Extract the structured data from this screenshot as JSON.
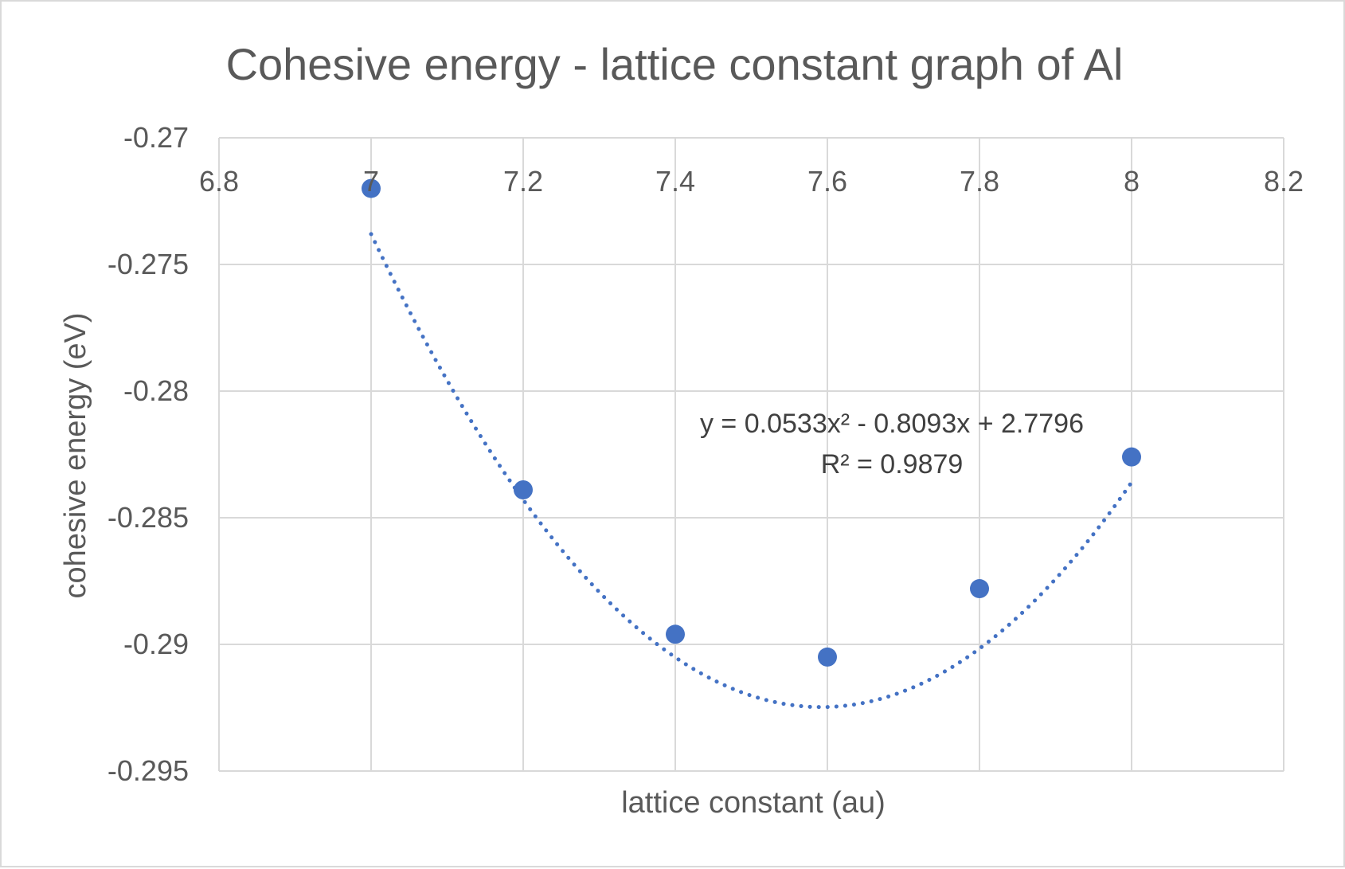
{
  "chart_data": {
    "type": "scatter",
    "title": "Cohesive energy - lattice constant graph of Al",
    "xlabel": "lattice constant (au)",
    "ylabel": "cohesive energy (eV)",
    "xlim": [
      6.8,
      8.2
    ],
    "ylim": [
      -0.295,
      -0.27
    ],
    "x_ticks": [
      6.8,
      7,
      7.2,
      7.4,
      7.6,
      7.8,
      8,
      8.2
    ],
    "x_tick_labels": [
      "6.8",
      "7",
      "7.2",
      "7.4",
      "7.6",
      "7.8",
      "8",
      "8.2"
    ],
    "y_ticks": [
      -0.27,
      -0.275,
      -0.28,
      -0.285,
      -0.29,
      -0.295
    ],
    "y_tick_labels": [
      "-0.27",
      "-0.275",
      "-0.28",
      "-0.285",
      "-0.29",
      "-0.295"
    ],
    "x_axis_position": "top",
    "grid": true,
    "legend": "none",
    "series": [
      {
        "x": [
          7.0,
          7.2,
          7.4,
          7.6,
          7.8,
          8.0
        ],
        "y": [
          -0.272,
          -0.2839,
          -0.2896,
          -0.2905,
          -0.2878,
          -0.2826
        ],
        "color": "#4472c4",
        "marker": "circle"
      }
    ],
    "trendline": {
      "type": "polynomial",
      "order": 2,
      "color": "#4472c4",
      "style": "dotted",
      "coefficients": [
        0.0533,
        -0.8093,
        2.7796
      ],
      "equation_label": "y = 0.0533x² - 0.8093x + 2.7796",
      "r2_label": "R² = 0.9879"
    }
  }
}
